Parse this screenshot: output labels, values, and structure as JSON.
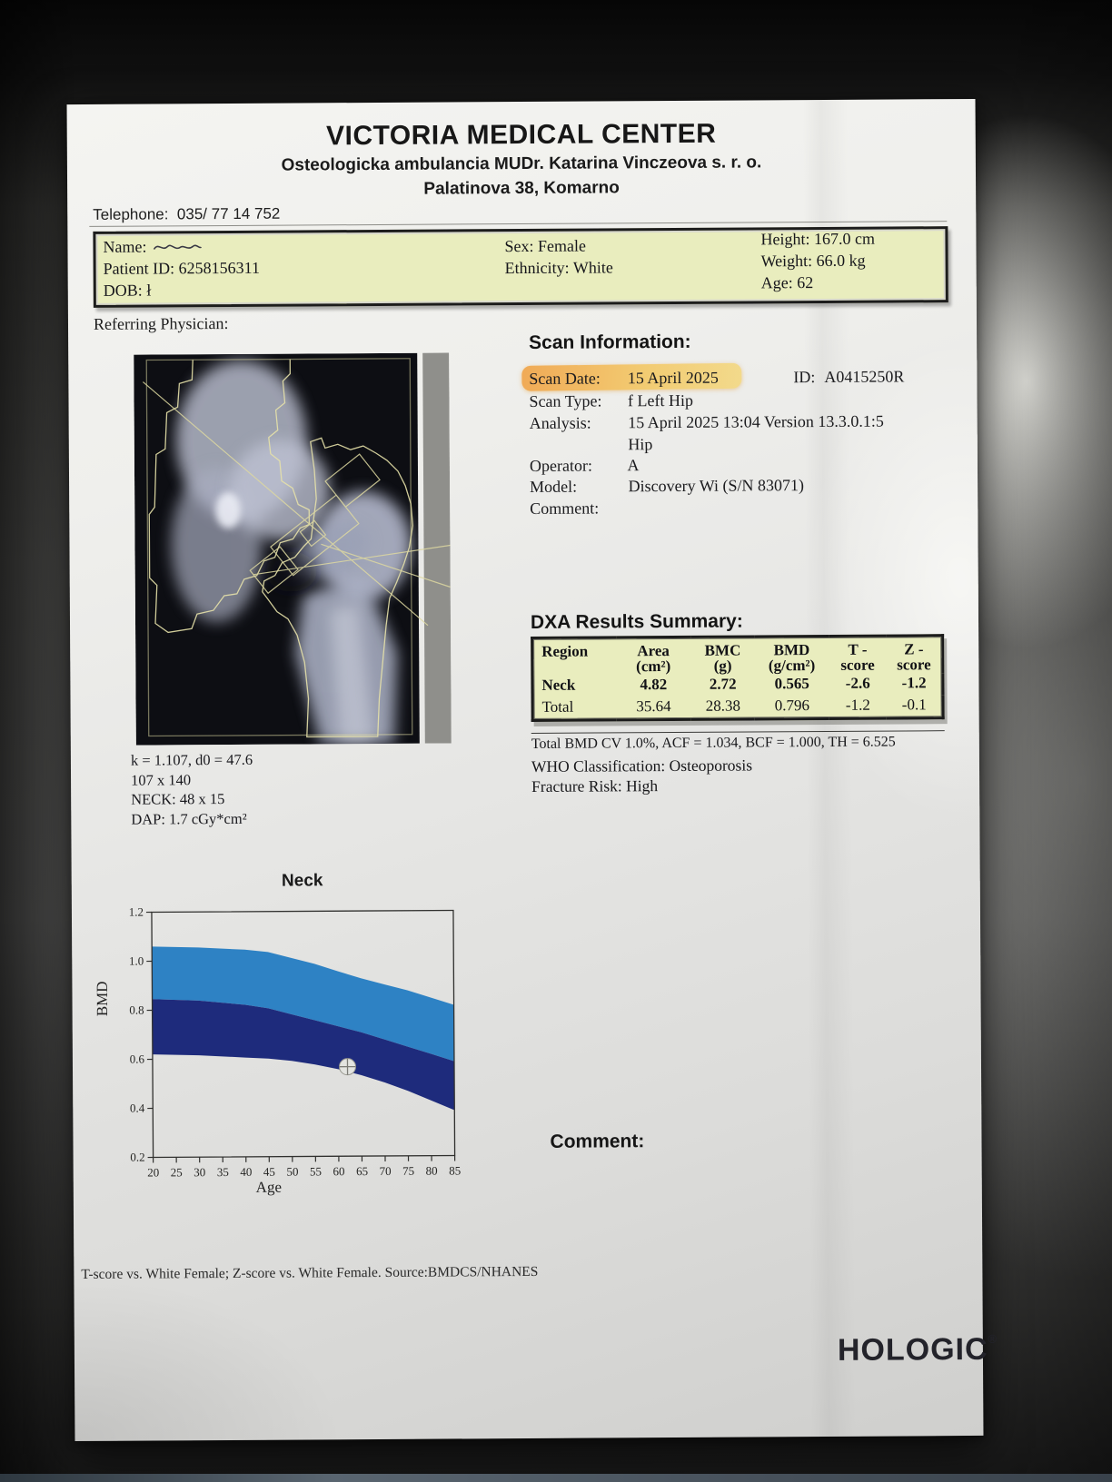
{
  "document": {
    "clinic": {
      "name": "VICTORIA MEDICAL CENTER",
      "subtitle": "Osteologicka ambulancia MUDr. Katarina Vinczeova s. r. o.",
      "address": "Palatinova 38, Komarno",
      "telephone_label": "Telephone:",
      "telephone": "035/ 77 14 752"
    },
    "patient": {
      "name_label": "Name:",
      "patient_id_label": "Patient ID:",
      "patient_id": "6258156311",
      "dob_label": "DOB:",
      "dob": "ł",
      "sex_label": "Sex:",
      "sex": "Female",
      "ethnicity_label": "Ethnicity:",
      "ethnicity": "White",
      "height_label": "Height:",
      "height": "167.0 cm",
      "weight_label": "Weight:",
      "weight": "66.0 kg",
      "age_label": "Age:",
      "age": "62"
    },
    "referring_physician_label": "Referring Physician:",
    "scan_info": {
      "title": "Scan Information:",
      "rows": [
        {
          "label": "Scan Date:",
          "value": "15 April 2025"
        },
        {
          "label": "Scan Type:",
          "value": "f Left Hip"
        },
        {
          "label": "Analysis:",
          "value": "15 April 2025 13:04 Version 13.3.0.1:5",
          "value2": "Hip"
        },
        {
          "label": "Operator:",
          "value": "A"
        },
        {
          "label": "Model:",
          "value": "Discovery Wi (S/N 83071)"
        },
        {
          "label": "Comment:",
          "value": ""
        }
      ],
      "id_label": "ID:",
      "id": "A0415250R",
      "highlight_color": "#f0b45e"
    },
    "scan_annotations": {
      "k_line": "k = 1.107, d0 = 47.6",
      "dims": "107 x 140",
      "neck": "NECK: 48 x 15",
      "dap": "DAP: 1.7 cGy*cm²"
    },
    "dxa_results": {
      "title": "DXA Results Summary:",
      "columns": [
        {
          "l1": "Region",
          "l2": ""
        },
        {
          "l1": "Area",
          "l2": "(cm²)"
        },
        {
          "l1": "BMC",
          "l2": "(g)"
        },
        {
          "l1": "BMD",
          "l2": "(g/cm²)"
        },
        {
          "l1": "T -",
          "l2": "score"
        },
        {
          "l1": "Z -",
          "l2": "score"
        }
      ],
      "rows": [
        {
          "region": "Neck",
          "area": "4.82",
          "bmc": "2.72",
          "bmd": "0.565",
          "t_score": "-2.6",
          "z_score": "-1.2"
        },
        {
          "region": "Total",
          "area": "35.64",
          "bmc": "28.38",
          "bmd": "0.796",
          "t_score": "-1.2",
          "z_score": "-0.1"
        }
      ],
      "table_bg": "#e9edbe",
      "stats_line": "Total BMD CV 1.0%, ACF = 1.034, BCF = 1.000, TH = 6.525",
      "who_line": "WHO Classification: Osteoporosis",
      "fracture_line": "Fracture Risk: High"
    },
    "comment_label": "Comment:",
    "footnote": "T-score vs. White Female; Z-score vs. White Female. Source:BMDCS/NHANES",
    "brand": {
      "name": "HOLOGIC",
      "reg": "®"
    }
  },
  "chart_data": {
    "type": "area",
    "title": "Neck",
    "xlabel": "Age",
    "ylabel": "BMD",
    "xlim": [
      20,
      85
    ],
    "ylim": [
      0.2,
      1.2
    ],
    "x_ticks": [
      20,
      25,
      30,
      35,
      40,
      45,
      50,
      55,
      60,
      65,
      70,
      75,
      80,
      85
    ],
    "y_ticks": [
      0.2,
      0.4,
      0.6,
      0.8,
      1.0,
      1.2
    ],
    "grid": false,
    "x": [
      20,
      30,
      40,
      45,
      50,
      55,
      60,
      65,
      70,
      75,
      80,
      85
    ],
    "series": [
      {
        "name": "reference-band-upper-limit",
        "values": [
          1.06,
          1.055,
          1.045,
          1.035,
          1.01,
          0.985,
          0.955,
          0.925,
          0.9,
          0.875,
          0.845,
          0.815
        ]
      },
      {
        "name": "reference-band-midline",
        "values": [
          0.845,
          0.838,
          0.82,
          0.805,
          0.78,
          0.755,
          0.73,
          0.705,
          0.675,
          0.645,
          0.615,
          0.585
        ]
      },
      {
        "name": "reference-band-lower-limit",
        "values": [
          0.62,
          0.615,
          0.605,
          0.6,
          0.59,
          0.575,
          0.555,
          0.53,
          0.5,
          0.465,
          0.425,
          0.385
        ]
      }
    ],
    "bands": {
      "upper_color": "#2e82c4",
      "lower_color": "#1e2b7c"
    },
    "patient_point": {
      "age": 62,
      "bmd": 0.565
    }
  }
}
